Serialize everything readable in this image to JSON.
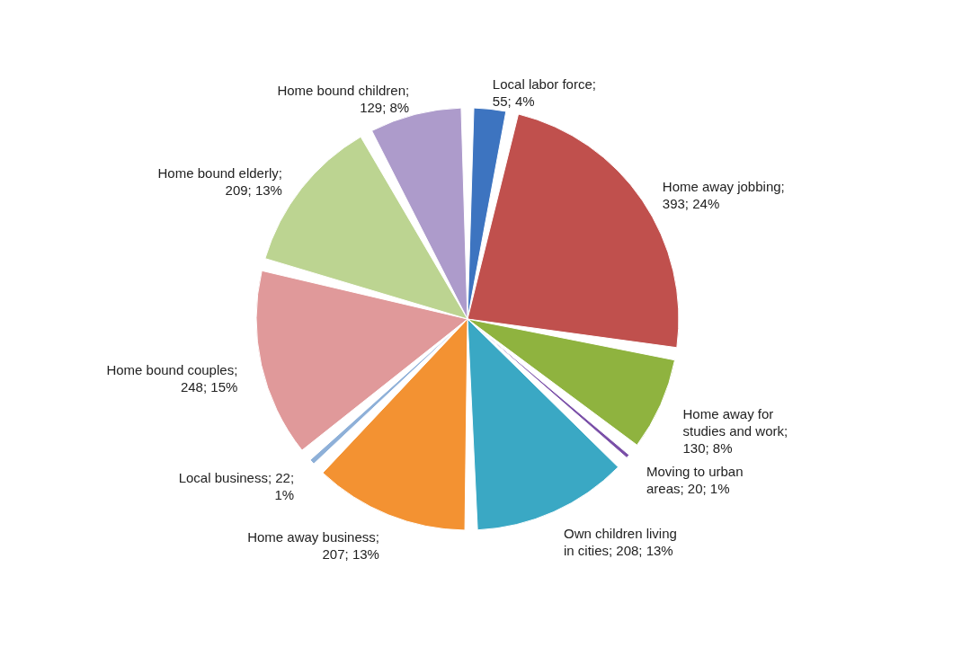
{
  "chart_data": {
    "type": "pie",
    "categories": [
      "Local labor force; 55; 4%",
      "Home away jobbing; 393; 24%",
      "Home away for studies and work; 130; 8%",
      "Moving to urban areas; 20; 1%",
      "Own children living in cities; 208; 13%",
      "Home away business; 207; 13%",
      "Local business; 22; 1%",
      "Home bound couples; 248; 15%",
      "Home bound elderly; 209; 13%",
      "Home bound children; 129; 8%"
    ],
    "values": [
      55,
      393,
      130,
      20,
      208,
      207,
      22,
      248,
      209,
      129
    ],
    "colors": [
      "#3d74c0",
      "#c0504d",
      "#8fb33f",
      "#7a4fa8",
      "#3aa8c4",
      "#f39232",
      "#8eb0d8",
      "#e0999a",
      "#bcd491",
      "#ad9bcb"
    ],
    "legend": false
  }
}
